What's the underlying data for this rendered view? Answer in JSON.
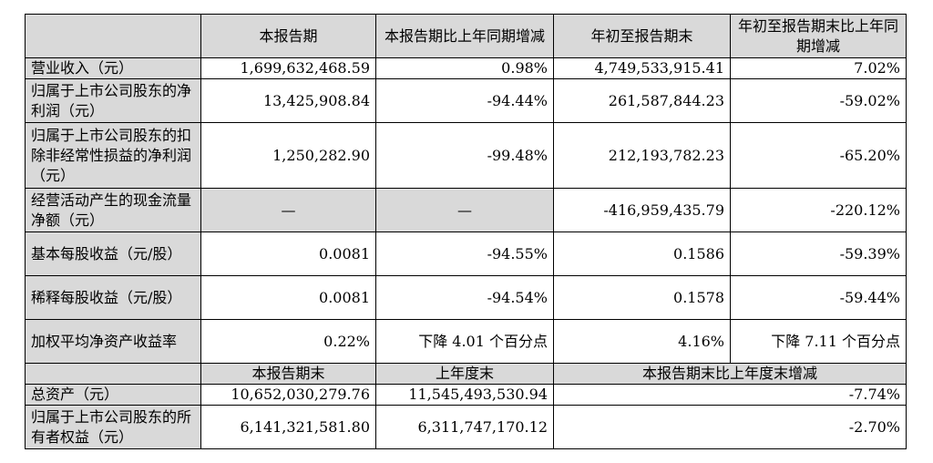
{
  "top_fragment": "",
  "header": {
    "col1": "本报告期",
    "col2": "本报告期比上年同期增减",
    "col3": "年初至报告期末",
    "col4": "年初至报告期末比上年同期增减"
  },
  "rows": [
    {
      "label": "营业收入（元）",
      "v1": "1,699,632,468.59",
      "v2": "0.98%",
      "v3": "4,749,533,915.41",
      "v4": "7.02%"
    },
    {
      "label": "归属于上市公司股东的净利润（元）",
      "v1": "13,425,908.84",
      "v2": "-94.44%",
      "v3": "261,587,844.23",
      "v4": "-59.02%"
    },
    {
      "label": "归属于上市公司股东的扣除非经常性损益的净利润（元）",
      "v1": "1,250,282.90",
      "v2": "-99.48%",
      "v3": "212,193,782.23",
      "v4": "-65.20%"
    },
    {
      "label": "经营活动产生的现金流量净额（元）",
      "v1": "—",
      "v2": "—",
      "v3": "-416,959,435.79",
      "v4": "-220.12%"
    },
    {
      "label": "基本每股收益（元/股）",
      "v1": "0.0081",
      "v2": "-94.55%",
      "v3": "0.1586",
      "v4": "-59.39%"
    },
    {
      "label": "稀释每股收益（元/股）",
      "v1": "0.0081",
      "v2": "-94.54%",
      "v3": "0.1578",
      "v4": "-59.44%"
    },
    {
      "label": "加权平均净资产收益率",
      "v1": "0.22%",
      "v2": "下降 4.01 个百分点",
      "v3": "4.16%",
      "v4": "下降 7.11 个百分点"
    }
  ],
  "subheader": {
    "col1": "本报告期末",
    "col2": "上年度末",
    "col3": "本报告期末比上年度末增减"
  },
  "rows2": [
    {
      "label": "总资产（元）",
      "v1": "10,652,030,279.76",
      "v2": "11,545,493,530.94",
      "v3": "-7.74%"
    },
    {
      "label": "归属于上市公司股东的所有者权益（元）",
      "v1": "6,141,321,581.80",
      "v2": "6,311,747,170.12",
      "v3": "-2.70%"
    }
  ]
}
